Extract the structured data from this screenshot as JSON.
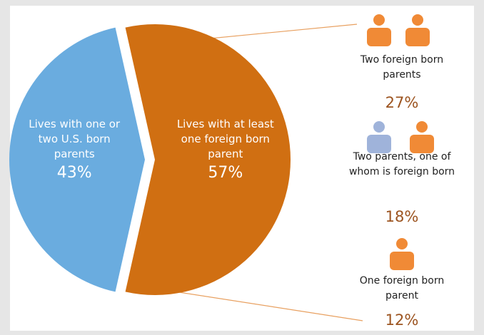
{
  "chart_data": {
    "type": "pie",
    "categories": [
      "Lives with one or two U.S. born parents",
      "Lives with at least one foreign born parent"
    ],
    "values": [
      43,
      57
    ],
    "value_labels": [
      "43%",
      "57%"
    ],
    "colors": [
      "#6aacdf",
      "#d06f12"
    ],
    "breakdown": {
      "categories": [
        "Two foreign born parents",
        "Two parents, one of whom is foreign born",
        "One foreign born parent"
      ],
      "values": [
        27,
        18,
        12
      ],
      "value_labels": [
        "27%",
        "18%",
        "12%"
      ],
      "color": "#9c5420"
    }
  }
}
